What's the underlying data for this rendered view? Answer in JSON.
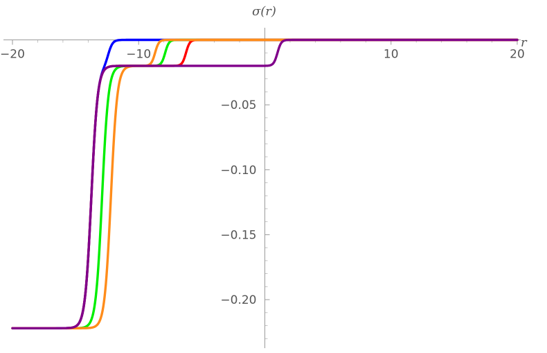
{
  "chart_data": {
    "type": "line",
    "xlabel": "r",
    "ylabel": "σ(r)",
    "xlim": [
      -20,
      20
    ],
    "ylim": [
      -0.232,
      0.004
    ],
    "grid": false,
    "x_ticks": [
      {
        "value": -20,
        "label": "−20"
      },
      {
        "value": -10,
        "label": "−10"
      },
      {
        "value": 10,
        "label": "10"
      },
      {
        "value": 20,
        "label": "20"
      }
    ],
    "y_ticks": [
      {
        "value": -0.05,
        "label": "−0.05"
      },
      {
        "value": -0.1,
        "label": "−0.10"
      },
      {
        "value": -0.15,
        "label": "−0.15"
      },
      {
        "value": -0.2,
        "label": "−0.20"
      }
    ],
    "series": [
      {
        "color": "#0000ff",
        "low": -0.222,
        "mid": -0.02,
        "high": 0.0,
        "x1": -13.75,
        "w1": 0.5,
        "x2": -12.4,
        "w2": 0.35
      },
      {
        "color": "#00ee00",
        "low": -0.222,
        "mid": -0.02,
        "high": 0.0,
        "x1": -12.9,
        "w1": 0.5,
        "x2": -7.9,
        "w2": 0.3
      },
      {
        "color": "#ff0000",
        "low": -0.222,
        "mid": -0.02,
        "high": 0.0,
        "x1": -13.75,
        "w1": 0.5,
        "x2": -6.25,
        "w2": 0.3
      },
      {
        "color": "#ff8c1a",
        "low": -0.222,
        "mid": -0.02,
        "high": 0.0,
        "x1": -12.2,
        "w1": 0.5,
        "x2": -8.7,
        "w2": 0.3
      },
      {
        "color": "#80008a",
        "low": -0.222,
        "mid": -0.02,
        "high": 0.0,
        "x1": -13.75,
        "w1": 0.5,
        "x2": 1.0,
        "w2": 0.3
      }
    ]
  }
}
